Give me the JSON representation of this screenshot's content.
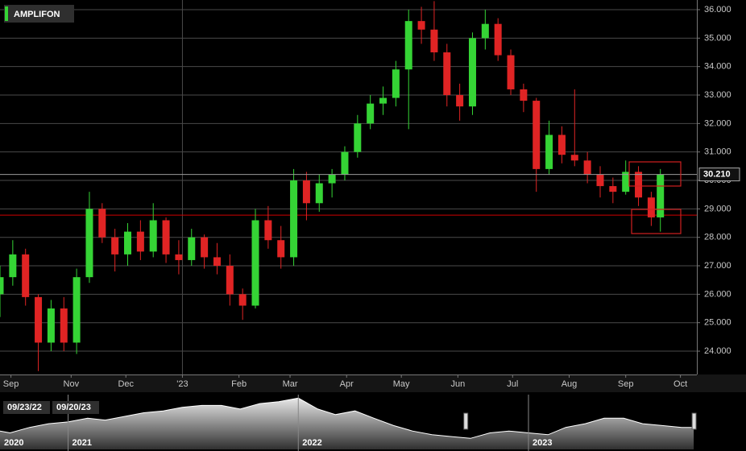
{
  "chart_data": {
    "type": "candlestick",
    "title": "AMPLIFON",
    "x": [
      "09/23/22",
      "09/30/22",
      "10/07/22",
      "10/14/22",
      "10/21/22",
      "10/28/22",
      "11/04/22",
      "11/11/22",
      "11/18/22",
      "11/25/22",
      "12/02/22",
      "12/09/22",
      "12/16/22",
      "12/23/22",
      "12/30/22",
      "01/06/23",
      "01/13/23",
      "01/20/23",
      "01/27/23",
      "02/03/23",
      "02/10/23",
      "02/17/23",
      "02/24/23",
      "03/03/23",
      "03/10/23",
      "03/17/23",
      "03/24/23",
      "03/31/23",
      "04/07/23",
      "04/14/23",
      "04/21/23",
      "04/28/23",
      "05/05/23",
      "05/12/23",
      "05/19/23",
      "05/26/23",
      "06/02/23",
      "06/09/23",
      "06/16/23",
      "06/23/23",
      "06/30/23",
      "07/07/23",
      "07/14/23",
      "07/21/23",
      "07/28/23",
      "08/04/23",
      "08/11/23",
      "08/18/23",
      "08/25/23",
      "09/01/23",
      "09/08/23",
      "09/15/23",
      "09/20/23"
    ],
    "open": [
      26.0,
      26.6,
      27.4,
      25.9,
      24.3,
      25.5,
      24.3,
      26.6,
      29.0,
      28.0,
      27.4,
      28.2,
      27.5,
      28.6,
      27.4,
      27.2,
      28.0,
      27.3,
      27.0,
      26.0,
      25.6,
      28.6,
      27.9,
      27.3,
      30.0,
      29.2,
      29.9,
      30.2,
      31.0,
      32.0,
      32.7,
      32.9,
      33.9,
      35.6,
      35.3,
      34.5,
      33.0,
      32.6,
      35.0,
      35.5,
      34.4,
      33.2,
      32.8,
      30.4,
      31.6,
      30.9,
      30.7,
      30.2,
      29.8,
      29.6,
      30.3,
      29.4,
      28.7
    ],
    "high": [
      27.0,
      27.9,
      27.6,
      26.0,
      25.8,
      25.9,
      26.9,
      29.6,
      29.2,
      28.3,
      28.5,
      28.6,
      29.2,
      28.7,
      27.9,
      28.3,
      28.1,
      27.8,
      27.4,
      26.2,
      29.0,
      29.1,
      28.4,
      30.4,
      30.3,
      30.2,
      30.4,
      31.2,
      32.3,
      33.0,
      33.3,
      34.2,
      36.0,
      36.1,
      36.3,
      34.8,
      33.4,
      35.2,
      36.0,
      35.7,
      34.6,
      33.4,
      32.9,
      32.1,
      31.9,
      33.2,
      31.0,
      30.5,
      30.1,
      30.7,
      30.5,
      29.6,
      30.4
    ],
    "low": [
      25.2,
      26.3,
      25.6,
      23.3,
      24.0,
      24.0,
      23.9,
      26.4,
      27.8,
      26.8,
      27.0,
      27.2,
      27.3,
      27.1,
      26.7,
      27.0,
      26.9,
      26.7,
      25.6,
      25.1,
      25.5,
      27.6,
      26.9,
      27.0,
      28.6,
      28.9,
      29.4,
      30.0,
      30.8,
      31.8,
      32.3,
      32.6,
      31.8,
      34.8,
      34.2,
      32.6,
      32.1,
      32.3,
      34.6,
      34.2,
      33.0,
      32.4,
      29.6,
      30.2,
      30.6,
      30.5,
      29.9,
      29.4,
      29.2,
      29.5,
      29.1,
      28.4,
      28.2
    ],
    "close": [
      26.6,
      27.4,
      25.9,
      24.3,
      25.5,
      24.3,
      26.6,
      29.0,
      28.0,
      27.4,
      28.2,
      27.5,
      28.6,
      27.4,
      27.2,
      28.0,
      27.3,
      27.0,
      26.0,
      25.6,
      28.6,
      27.9,
      27.3,
      30.0,
      29.2,
      29.9,
      30.2,
      31.0,
      32.0,
      32.7,
      32.9,
      33.9,
      35.6,
      35.3,
      34.5,
      33.0,
      32.6,
      35.0,
      35.5,
      34.4,
      33.2,
      32.8,
      30.4,
      31.6,
      30.9,
      30.7,
      30.2,
      29.8,
      29.6,
      30.3,
      29.4,
      28.7,
      30.21
    ],
    "up_color": "#35d435",
    "down_color": "#e02424",
    "xlim": [
      "09/23/22",
      "10/10/23"
    ],
    "xticks": [
      {
        "value": "09/29/22",
        "label": "Sep"
      },
      {
        "value": "11/01/22",
        "label": "Nov"
      },
      {
        "value": "12/01/22",
        "label": "Dec"
      },
      {
        "value": "01/01/23",
        "label": "'23"
      },
      {
        "value": "02/01/23",
        "label": "Feb"
      },
      {
        "value": "03/01/23",
        "label": "Mar"
      },
      {
        "value": "04/01/23",
        "label": "Apr"
      },
      {
        "value": "05/01/23",
        "label": "May"
      },
      {
        "value": "06/01/23",
        "label": "Jun"
      },
      {
        "value": "07/01/23",
        "label": "Jul"
      },
      {
        "value": "08/01/23",
        "label": "Aug"
      },
      {
        "value": "09/01/23",
        "label": "Sep"
      },
      {
        "value": "10/01/23",
        "label": "Oct"
      }
    ],
    "ylim": [
      23.18,
      36.34
    ],
    "yticks": [
      {
        "value": 24,
        "label": "24.000"
      },
      {
        "value": 25,
        "label": "25.000"
      },
      {
        "value": 26,
        "label": "26.000"
      },
      {
        "value": 27,
        "label": "27.000"
      },
      {
        "value": 28,
        "label": "28.000"
      },
      {
        "value": 29,
        "label": "29.000"
      },
      {
        "value": 30,
        "label": "30.000"
      },
      {
        "value": 31,
        "label": "31.000"
      },
      {
        "value": 32,
        "label": "32.000"
      },
      {
        "value": 33,
        "label": "33.000"
      },
      {
        "value": 34,
        "label": "34.000"
      },
      {
        "value": 35,
        "label": "35.000"
      },
      {
        "value": 36,
        "label": "36.000"
      }
    ],
    "grid": true,
    "last_price": {
      "value": 30.21,
      "label": "30.210"
    },
    "reference_lines": [
      {
        "value": 28.78,
        "color": "#d00000"
      }
    ],
    "range": [
      "09/23/22",
      "09/20/23"
    ],
    "navigator": {
      "x": [
        "09/15/20",
        "10/01/20",
        "11/01/20",
        "12/01/20",
        "01/01/21",
        "02/01/21",
        "03/01/21",
        "04/01/21",
        "05/01/21",
        "06/01/21",
        "07/01/21",
        "08/01/21",
        "09/01/21",
        "10/01/21",
        "11/01/21",
        "12/01/21",
        "01/01/22",
        "02/01/22",
        "03/01/22",
        "04/01/22",
        "05/01/22",
        "06/01/22",
        "07/01/22",
        "08/01/22",
        "09/01/22",
        "10/01/22",
        "11/01/22",
        "12/01/22",
        "01/01/23",
        "02/01/23",
        "03/01/23",
        "04/01/23",
        "05/01/23",
        "06/01/23",
        "07/01/23",
        "08/01/23",
        "09/01/23",
        "09/20/23"
      ],
      "values": [
        28,
        27,
        30,
        32,
        33,
        35,
        34,
        36,
        38,
        39,
        41,
        42,
        42,
        40,
        43,
        44,
        46,
        40,
        37,
        39,
        35,
        31,
        28,
        26,
        25,
        24,
        27,
        28,
        27,
        26,
        30,
        32,
        35,
        35,
        32,
        31,
        30,
        30
      ],
      "ylim": [
        18,
        47
      ],
      "xlim": [
        "09/15/20",
        "09/25/23"
      ],
      "xticks": [
        {
          "value": "09/15/20",
          "label": "2020"
        },
        {
          "value": "01/01/21",
          "label": "2021"
        },
        {
          "value": "01/01/22",
          "label": "2022"
        },
        {
          "value": "01/01/23",
          "label": "2023"
        }
      ]
    }
  }
}
